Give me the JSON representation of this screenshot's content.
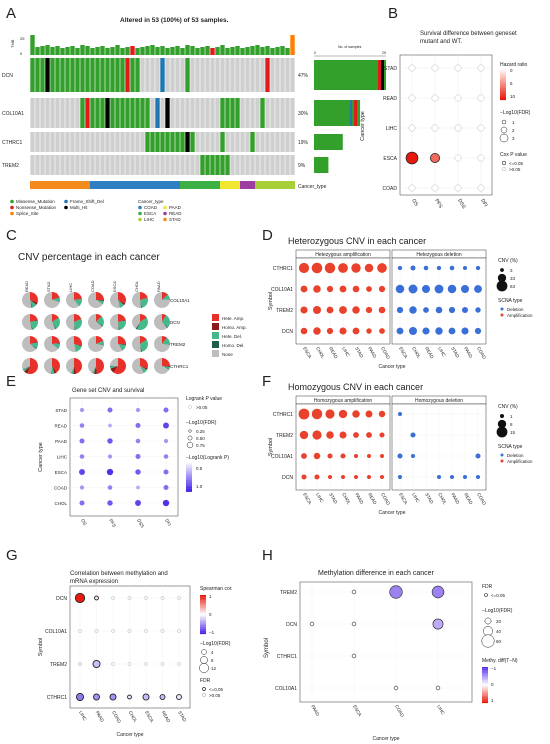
{
  "panel_letters": [
    "A",
    "B",
    "C",
    "D",
    "E",
    "F",
    "G",
    "H"
  ],
  "colors": {
    "missense": "#33a02c",
    "nonsense": "#e31a1c",
    "splice": "#ff7f00",
    "frameshift": "#1f78b4",
    "multihit": "#000000",
    "bg_cell": "#cfcfcf",
    "amp": "#e8412c",
    "del": "#3a6fd8",
    "heter_amp": "#e8312a",
    "homo_amp": "#8b1a1a",
    "heter_del": "#46b98b",
    "homo_del": "#1f5f4a",
    "none": "#bdbdbd",
    "COAD": "#2e7ec1",
    "ESCA": "#3cb044",
    "LIHC": "#a6cf38",
    "PAAD": "#f1e632",
    "READ": "#9b3ea0",
    "STAD": "#f28a1e"
  },
  "A": {
    "title": "Altered in 53 (100%) of 53 samples.",
    "tmb_axis": [
      "25",
      "0"
    ],
    "tmb_label": "TMB",
    "genes": [
      "DCN",
      "COL10A1",
      "CTHRC1",
      "TREM2"
    ],
    "pct": [
      "47%",
      "30%",
      "19%",
      "9%"
    ],
    "n_samples": 53,
    "right_axis_label": "No. of samples",
    "right_axis_ticks": [
      "0",
      "25"
    ],
    "bar_counts": [
      25,
      16,
      10,
      5
    ],
    "cancer_type_label": "Cancer_type",
    "legend_mut": [
      "Missense_Mutation",
      "Nonsense_Mutation",
      "Splice_Site",
      "Frame_Shift_Del",
      "Multi_Hit"
    ],
    "legend_ct_title": "Cancer_type",
    "legend_ct": [
      "COAD",
      "ESCA",
      "LIHC",
      "PAAD",
      "READ",
      "STAD"
    ]
  },
  "B": {
    "title": "Survival difference between geneset mutant and WT.",
    "y": [
      "STAD",
      "READ",
      "LIHC",
      "ESCA",
      "COAD"
    ],
    "x": [
      "OS",
      "PFS",
      "DSS",
      "DFI"
    ],
    "ylabel": "Cancer type",
    "hr_title": "Hazard ratio",
    "hr_ticks": [
      "0",
      "5",
      "10"
    ],
    "fdr_title": "−Log10(FDR)",
    "fdr_ticks": [
      "1",
      "2",
      "3"
    ],
    "cox_title": "Cox P value",
    "cox_ticks": [
      "<=0.05",
      ">0.05"
    ]
  },
  "C": {
    "title": "CNV percentage in each cancer",
    "cols": [
      "READ",
      "STAD",
      "LIHC",
      "COAD",
      "ESCA",
      "CHOL",
      "PAAD"
    ],
    "rows": [
      "COL10A1",
      "DCN",
      "TREM2",
      "CTHRC1"
    ],
    "legend": [
      "Hete. Amp.",
      "Homo. Amp.",
      "Hete. Del.",
      "Homo. Del.",
      "None"
    ]
  },
  "D": {
    "title": "Heterozygous CNV in each cancer",
    "left_strip": "Hetezygous amplification",
    "right_strip": "Hetezygous deletion",
    "genes": [
      "CTHRC1",
      "COL10A1",
      "TREM2",
      "DCN"
    ],
    "left_x": [
      "ESCA",
      "CHOL",
      "READ",
      "LIHC",
      "STAD",
      "PAAD",
      "COAD"
    ],
    "right_x": [
      "ESCA",
      "CHOL",
      "READ",
      "LIHC",
      "STAD",
      "PAAD",
      "COAD"
    ],
    "ylabel": "Symbol",
    "xlabel": "Cancer type",
    "cnv_title": "CNV (%)",
    "cnv_ticks": [
      "3",
      "33",
      "63"
    ],
    "scna_title": "SCNA type",
    "scna": [
      "Deletion",
      "Amplification"
    ]
  },
  "E": {
    "title": "Gene set CNV and survival",
    "y": [
      "STAD",
      "READ",
      "PAAD",
      "LIHC",
      "ESCA",
      "COAD",
      "CHOL"
    ],
    "x": [
      "OS",
      "PFS",
      "DSS",
      "DFI"
    ],
    "ylabel": "Cancer type",
    "logrank_title": "Logrank P value",
    "logrank_ticks": [
      ">0.05"
    ],
    "fdr_title": "−Log10(FDR)",
    "fdr_ticks": [
      "0.25",
      "0.50",
      "0.75"
    ],
    "lr_title": "−Log10(Logrank P)",
    "lr_ticks": [
      "0.5",
      "1.0"
    ]
  },
  "F": {
    "title": "Homozygous CNV in each cancer",
    "left_strip": "Homozygous amplification",
    "right_strip": "Homozygous deletion",
    "genes": [
      "CTHRC1",
      "TREM2",
      "COL10A1",
      "DCN"
    ],
    "left_x": [
      "ESCA",
      "LIHC",
      "STAD",
      "CHOL",
      "PAAD",
      "READ",
      "COAD"
    ],
    "right_x": [
      "ESCA",
      "LIHC",
      "STAD",
      "CHOL",
      "PAAD",
      "READ",
      "COAD"
    ],
    "ylabel": "Symbol",
    "xlabel": "Cancer type",
    "cnv_title": "CNV (%)",
    "cnv_ticks": [
      "1",
      "8",
      "15"
    ],
    "scna_title": "SCNA type",
    "scna": [
      "Deletion",
      "Amplification"
    ]
  },
  "G": {
    "title": "Correlation between methylation and mRNA expression",
    "genes": [
      "DCN",
      "COL10A1",
      "TREM2",
      "CTHRC1"
    ],
    "x": [
      "LIHC",
      "PAAD",
      "COAD",
      "CHOL",
      "ESCA",
      "READ",
      "STAD"
    ],
    "ylabel": "Symbol",
    "xlabel": "Cancer type",
    "sp_title": "Spearman cor.",
    "sp_ticks": [
      "1",
      "0",
      "−1"
    ],
    "fdr_title": "−Log10(FDR)",
    "fdr_ticks": [
      "4",
      "8",
      "12"
    ],
    "sig_title": "FDR",
    "sig_ticks": [
      "<=0.05",
      ">0.05"
    ]
  },
  "H": {
    "title": "Methylation difference in each cancer",
    "genes": [
      "TREM2",
      "DCN",
      "CTHRC1",
      "COL10A1"
    ],
    "x": [
      "PAAD",
      "ESCA",
      "COAD",
      "LIHC"
    ],
    "ylabel": "Symbol",
    "xlabel": "Cancer type",
    "fdr_title": "FDR",
    "fdr_ticks": [
      "<=0.05"
    ],
    "lfdr_title": "−Log10(FDR)",
    "lfdr_ticks": [
      "20",
      "40",
      "60"
    ],
    "md_title": "Methy. diff(T−N)",
    "md_ticks": [
      "1",
      "0",
      "−1"
    ]
  },
  "chart_data": [
    {
      "type": "heatmap",
      "title": "Altered in 53 (100%) of 53 samples.",
      "genes": [
        "DCN",
        "COL10A1",
        "CTHRC1",
        "TREM2"
      ],
      "altered_pct": [
        47,
        30,
        19,
        9
      ],
      "altered_samples": [
        25,
        16,
        10,
        5
      ],
      "cancer_type_samples": {
        "STAD": 12,
        "COAD": 18,
        "ESCA": 8,
        "PAAD": 4,
        "READ": 3,
        "LIHC": 8
      }
    },
    {
      "type": "scatter",
      "title": "Survival difference between geneset mutant and WT.",
      "points": [
        {
          "cancer": "ESCA",
          "endpoint": "OS",
          "hazard_ratio": 10,
          "log10fdr": 3,
          "cox_sig": true
        },
        {
          "cancer": "ESCA",
          "endpoint": "PFS",
          "hazard_ratio": 6,
          "log10fdr": 2,
          "cox_sig": true
        }
      ]
    },
    {
      "type": "pie",
      "title": "CNV percentage in each cancer",
      "slices": {
        "COL10A1": {
          "READ": [
            30,
            5,
            10,
            2,
            53
          ],
          "STAD": [
            18,
            2,
            8,
            1,
            71
          ],
          "LIHC": [
            22,
            1,
            15,
            1,
            61
          ],
          "COAD": [
            25,
            2,
            6,
            1,
            66
          ],
          "ESCA": [
            32,
            4,
            9,
            1,
            54
          ],
          "CHOL": [
            20,
            1,
            25,
            2,
            52
          ],
          "PAAD": [
            12,
            1,
            10,
            1,
            76
          ]
        },
        "DCN": {
          "READ": [
            20,
            2,
            22,
            2,
            54
          ],
          "STAD": [
            15,
            1,
            25,
            2,
            57
          ],
          "LIHC": [
            18,
            1,
            28,
            2,
            51
          ],
          "COAD": [
            12,
            1,
            20,
            2,
            65
          ],
          "ESCA": [
            20,
            2,
            25,
            2,
            51
          ],
          "CHOL": [
            15,
            1,
            40,
            3,
            41
          ],
          "PAAD": [
            8,
            1,
            28,
            2,
            61
          ]
        },
        "TREM2": {
          "READ": [
            20,
            2,
            12,
            2,
            64
          ],
          "STAD": [
            22,
            2,
            10,
            1,
            65
          ],
          "LIHC": [
            28,
            2,
            15,
            1,
            54
          ],
          "COAD": [
            18,
            1,
            8,
            1,
            72
          ],
          "ESCA": [
            25,
            2,
            12,
            1,
            60
          ],
          "CHOL": [
            15,
            1,
            30,
            2,
            52
          ],
          "PAAD": [
            10,
            1,
            15,
            1,
            73
          ]
        },
        "CTHRC1": {
          "READ": [
            55,
            8,
            5,
            1,
            31
          ],
          "STAD": [
            40,
            5,
            6,
            1,
            48
          ],
          "LIHC": [
            45,
            6,
            4,
            1,
            44
          ],
          "COAD": [
            48,
            6,
            3,
            1,
            42
          ],
          "ESCA": [
            60,
            10,
            4,
            1,
            25
          ],
          "CHOL": [
            30,
            3,
            8,
            1,
            58
          ],
          "PAAD": [
            25,
            2,
            5,
            1,
            67
          ]
        }
      }
    },
    {
      "type": "scatter",
      "title": "Heterozygous CNV in each cancer",
      "amplification": {
        "CTHRC1": [
          55,
          60,
          58,
          50,
          45,
          35,
          48
        ],
        "COL10A1": [
          20,
          25,
          15,
          20,
          18,
          12,
          15
        ],
        "TREM2": [
          22,
          30,
          20,
          28,
          25,
          15,
          18
        ],
        "DCN": [
          18,
          25,
          15,
          22,
          20,
          10,
          12
        ]
      },
      "deletion": {
        "CTHRC1": [
          5,
          8,
          6,
          5,
          6,
          4,
          5
        ],
        "COL10A1": [
          35,
          40,
          30,
          38,
          35,
          30,
          28
        ],
        "TREM2": [
          15,
          25,
          12,
          18,
          15,
          14,
          10
        ],
        "DCN": [
          20,
          30,
          22,
          25,
          20,
          22,
          15
        ]
      }
    },
    {
      "type": "scatter",
      "title": "Gene set CNV and survival",
      "log10_logrank_p": {
        "STAD": [
          0.4,
          0.6,
          0.4,
          0.6
        ],
        "READ": [
          0.5,
          0.3,
          0.6,
          0.8
        ],
        "PAAD": [
          0.6,
          0.7,
          0.5,
          0.4
        ],
        "LIHC": [
          0.5,
          0.4,
          0.6,
          0.5
        ],
        "ESCA": [
          0.8,
          0.9,
          0.7,
          0.6
        ],
        "COAD": [
          0.4,
          0.5,
          0.3,
          0.6
        ],
        "CHOL": [
          0.6,
          0.7,
          0.8,
          0.9
        ]
      }
    },
    {
      "type": "scatter",
      "title": "Homozygous CNV in each cancer",
      "amplification": {
        "CTHRC1": [
          15,
          14,
          10,
          8,
          6,
          5,
          4
        ],
        "TREM2": [
          8,
          10,
          6,
          5,
          3,
          3,
          2
        ],
        "COL10A1": [
          3,
          4,
          2,
          2,
          1,
          1,
          1
        ],
        "DCN": [
          2,
          2,
          1,
          1,
          1,
          1,
          1
        ]
      },
      "deletion": {
        "CTHRC1": [
          1,
          0,
          0,
          0,
          0,
          0,
          0
        ],
        "TREM2": [
          0,
          2,
          0,
          0,
          0,
          0,
          0
        ],
        "COL10A1": [
          2,
          1,
          0,
          0,
          0,
          0,
          2
        ],
        "DCN": [
          1,
          0,
          0,
          1,
          1,
          1,
          1
        ]
      }
    },
    {
      "type": "scatter",
      "title": "Correlation between methylation and mRNA expression",
      "spearman": {
        "DCN": [
          1,
          0.1,
          0.05,
          0.05,
          0.05,
          0.05,
          0.05
        ],
        "COL10A1": [
          0.05,
          0.05,
          0.05,
          0.05,
          0.05,
          0.05,
          0.05
        ],
        "TREM2": [
          0.1,
          -0.3,
          0.05,
          0.05,
          0.05,
          0.05,
          0.05
        ],
        "CTHRC1": [
          -0.6,
          -0.5,
          -0.5,
          -0.1,
          -0.3,
          -0.3,
          -0.1
        ]
      },
      "log10fdr": {
        "DCN": [
          12,
          2,
          1,
          1,
          1,
          1,
          1
        ],
        "COL10A1": [
          1,
          1,
          1,
          1,
          1,
          1,
          1
        ],
        "TREM2": [
          1,
          8,
          1,
          1,
          1,
          1,
          1
        ],
        "CTHRC1": [
          8,
          6,
          6,
          2,
          6,
          4,
          4
        ]
      }
    },
    {
      "type": "scatter",
      "title": "Methylation difference in each cancer",
      "methy_diff": {
        "TREM2": [
          0,
          0,
          -0.3,
          -0.3
        ],
        "DCN": [
          0,
          0,
          0,
          -0.2
        ],
        "CTHRC1": [
          0,
          0,
          0,
          0
        ],
        "COL10A1": [
          0,
          0,
          0,
          0
        ]
      },
      "log10fdr": {
        "TREM2": [
          0,
          5,
          60,
          55
        ],
        "DCN": [
          5,
          5,
          0,
          45
        ],
        "CTHRC1": [
          0,
          5,
          0,
          0
        ],
        "COL10A1": [
          0,
          0,
          5,
          5
        ]
      }
    }
  ]
}
